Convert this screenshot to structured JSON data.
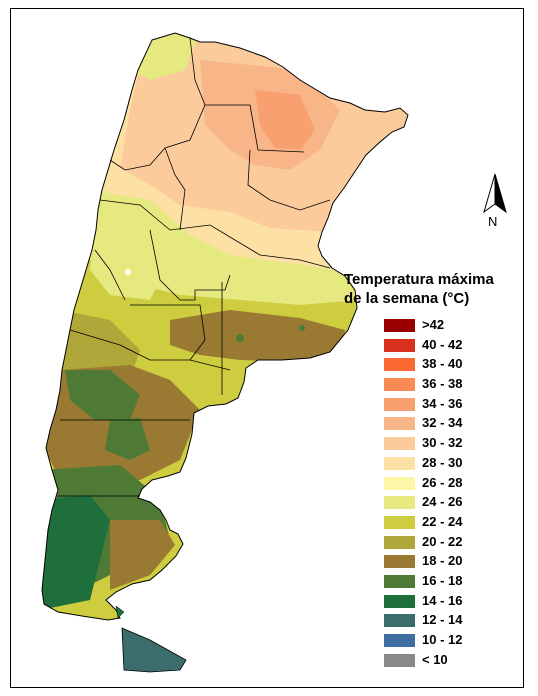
{
  "legend": {
    "title": "Temperatura máxima\nde la semana (°C)",
    "items": [
      {
        "label": ">42",
        "color": "#9b0000"
      },
      {
        "label": "40 - 42",
        "color": "#d8321e"
      },
      {
        "label": "38 - 40",
        "color": "#fa6a32"
      },
      {
        "label": "36 - 38",
        "color": "#fa8a54"
      },
      {
        "label": "34 - 36",
        "color": "#f9a070"
      },
      {
        "label": "32 - 34",
        "color": "#f8b588"
      },
      {
        "label": "30 - 32",
        "color": "#fbcb9c"
      },
      {
        "label": "28 - 30",
        "color": "#fde0a4"
      },
      {
        "label": "26 - 28",
        "color": "#fdf6a6"
      },
      {
        "label": "24 - 26",
        "color": "#e6e880"
      },
      {
        "label": "22 - 24",
        "color": "#cdcd3f"
      },
      {
        "label": "20 - 22",
        "color": "#b0a73a"
      },
      {
        "label": "18 - 20",
        "color": "#9a7a33"
      },
      {
        "label": "16 - 18",
        "color": "#4e7a35"
      },
      {
        "label": "14 - 16",
        "color": "#1f6f3c"
      },
      {
        "label": "12 - 14",
        "color": "#3a6d6b"
      },
      {
        "label": "10 - 12",
        "color": "#3f6fa0"
      },
      {
        "label": "< 10",
        "color": "#8a8a8a"
      }
    ]
  },
  "north_arrow": {
    "label": "N"
  }
}
